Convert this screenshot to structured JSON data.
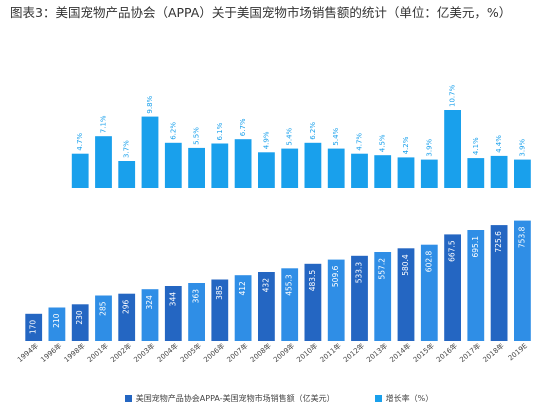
{
  "title": "图表3：美国宠物产品协会（APPA）关于美国宠物市场销售额的统计（单位：亿美元，%）",
  "colors": {
    "bar_dark": "#2466c2",
    "bar_light": "#2f8ee6",
    "growth": "#19a0ec",
    "label": "#ffffff",
    "axis_text": "#444444"
  },
  "legend": {
    "sales": "美国宠物产品协会APPA-美国宠物市场销售额（亿美元）",
    "growth": "增长率（%）"
  },
  "chart_data": {
    "type": "bar",
    "categories": [
      "1994年",
      "1996年",
      "1998年",
      "2001年",
      "2002年",
      "2003年",
      "2004年",
      "2005年",
      "2006年",
      "2007年",
      "2008年",
      "2009年",
      "2010年",
      "2011年",
      "2012年",
      "2013年",
      "2014年",
      "2015年",
      "2016年",
      "2017年",
      "2018年",
      "2019E"
    ],
    "series": [
      {
        "name": "美国宠物产品协会APPA-美国宠物市场销售额（亿美元）",
        "values": [
          170,
          210,
          230,
          285,
          296,
          324,
          344,
          363,
          385,
          412,
          432,
          455.3,
          483.5,
          509.6,
          533.3,
          557.2,
          580.4,
          602.8,
          667.5,
          695.1,
          725.6,
          753.8
        ],
        "labels": [
          "170",
          "210",
          "230",
          "285",
          "296",
          "324",
          "344",
          "363",
          "385",
          "412",
          "432",
          "455.3",
          "483.5",
          "509.6",
          "533.3",
          "557.2",
          "580.4",
          "602.8",
          "667.5",
          "695.1",
          "725.6",
          "753.8"
        ]
      },
      {
        "name": "增长率（%）",
        "values": [
          null,
          null,
          4.7,
          7.1,
          3.7,
          9.8,
          6.2,
          5.5,
          6.1,
          6.7,
          4.9,
          5.4,
          6.2,
          5.4,
          4.7,
          4.5,
          4.2,
          3.9,
          10.7,
          4.1,
          4.4,
          3.9
        ],
        "labels": [
          "",
          "",
          "4.7%",
          "7.1%",
          "3.7%",
          "9.8%",
          "6.2%",
          "5.5%",
          "6.1%",
          "6.7%",
          "4.9%",
          "5.4%",
          "6.2%",
          "5.4%",
          "4.7%",
          "4.5%",
          "4.2%",
          "3.9%",
          "10.7%",
          "4.1%",
          "4.4%",
          "3.9%"
        ]
      }
    ],
    "grid": false,
    "legend_position": "bottom"
  }
}
